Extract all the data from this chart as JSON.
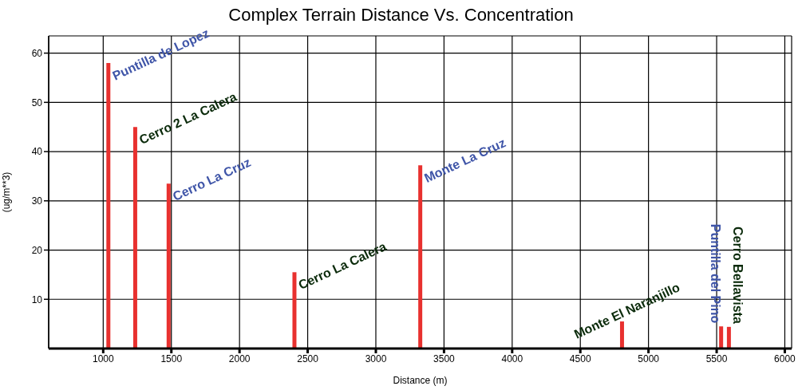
{
  "chart_data": {
    "type": "bar",
    "title": "Complex Terrain Distance Vs. Concentration",
    "xlabel": "Distance (m)",
    "ylabel": "(ug/m**3)",
    "x": [
      1040,
      1237,
      1482,
      2405,
      3328,
      4808,
      5535,
      5592
    ],
    "values": [
      58,
      45,
      33.5,
      15.5,
      37.2,
      5.5,
      4.5,
      4.4
    ],
    "color": "#e8312f",
    "xlim": [
      600,
      6050
    ],
    "xticks": [
      1000,
      1500,
      2000,
      2500,
      3000,
      3500,
      4000,
      4500,
      5000,
      5500,
      6000
    ],
    "ylim": [
      0,
      63.5
    ],
    "yticks": [
      10,
      20,
      30,
      40,
      50,
      60
    ],
    "grid": true,
    "annotations": [
      {
        "text": "Puntilla de Lopez",
        "x": 1040,
        "y": 58
      },
      {
        "text": "Cerro 2 La Calera",
        "x": 1237,
        "y": 45
      },
      {
        "text": "Cerro La Cruz",
        "x": 1482,
        "y": 33.5
      },
      {
        "text": "Cerro La Calera",
        "x": 2405,
        "y": 15.5
      },
      {
        "text": "Monte La Cruz",
        "x": 3328,
        "y": 37.2
      },
      {
        "text": "Monte El Naranjillo",
        "x": 4808,
        "y": 5.5
      },
      {
        "text": "Puntilla del Pino",
        "x": 5535,
        "y": 4.5
      },
      {
        "text": "Cerro Bellavista",
        "x": 5592,
        "y": 4.4
      }
    ]
  }
}
